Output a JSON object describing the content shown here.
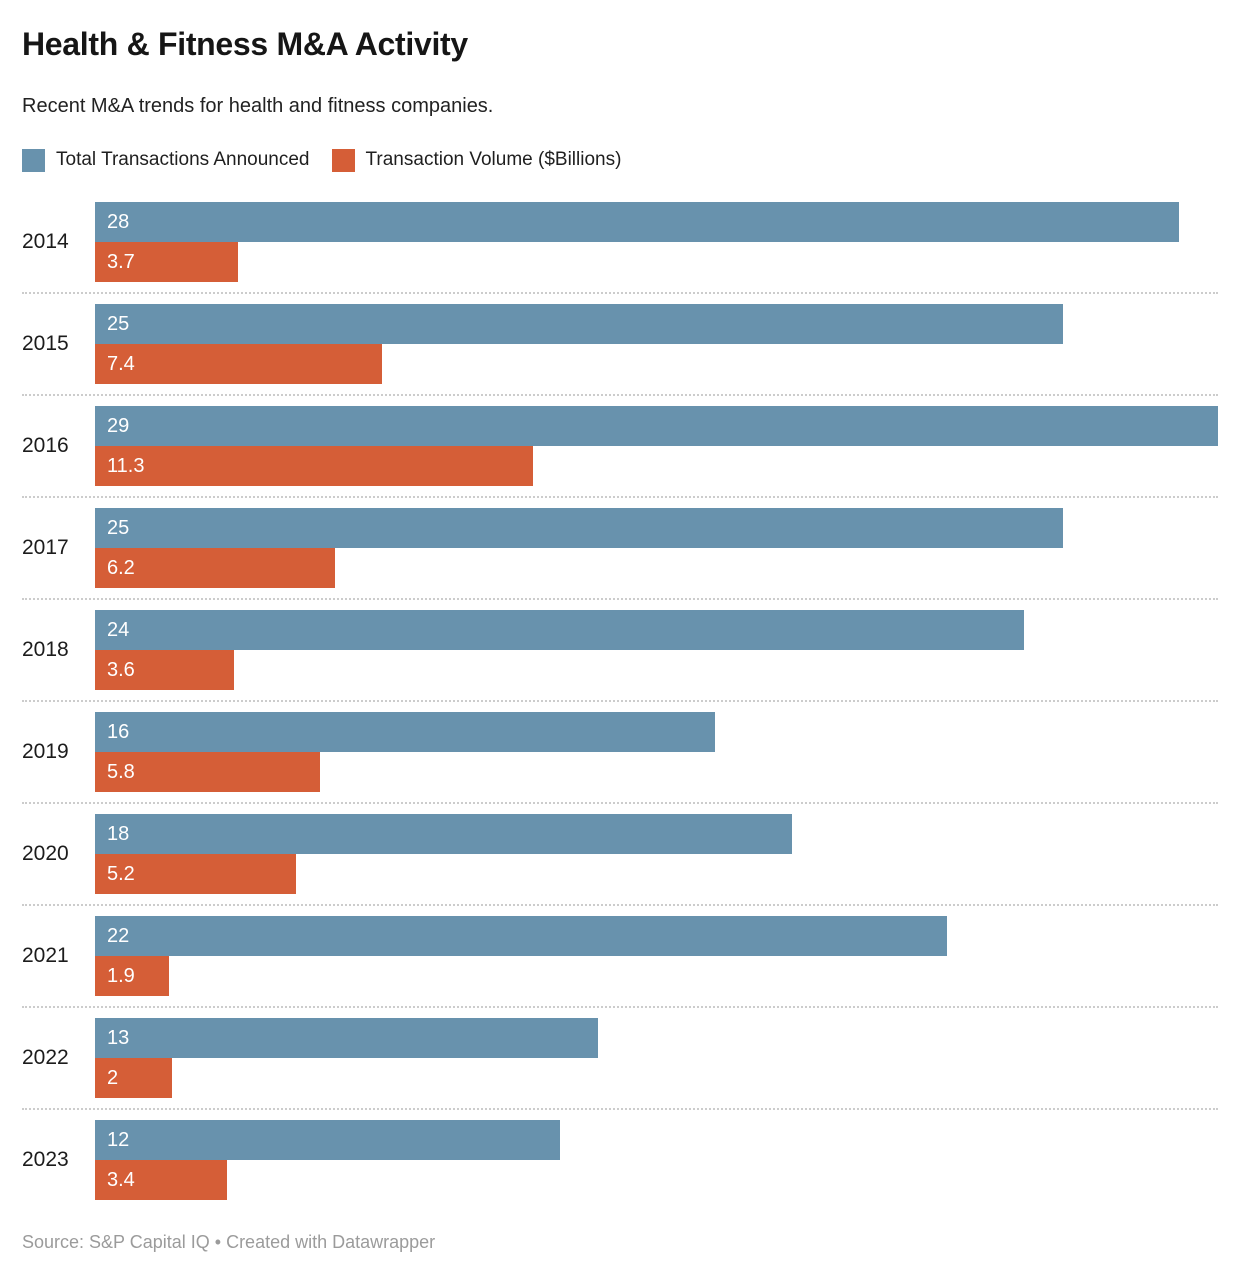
{
  "header": {
    "title": "Health & Fitness M&A Activity",
    "subtitle": "Recent M&A trends for health and fitness companies."
  },
  "legend": {
    "items": [
      {
        "label": "Total Transactions Announced",
        "color": "#6892ad"
      },
      {
        "label": "Transaction Volume ($Billions)",
        "color": "#d55e37"
      }
    ]
  },
  "footer": {
    "text": "Source: S&P Capital IQ • Created with Datawrapper"
  },
  "colors": {
    "blue": "#6892ad",
    "orange": "#d55e37",
    "separator": "#cccccc",
    "footer_text": "#9b9b9b"
  },
  "chart_data": {
    "type": "bar",
    "orientation": "horizontal",
    "title": "Health & Fitness M&A Activity",
    "subtitle": "Recent M&A trends for health and fitness companies.",
    "categories": [
      "2014",
      "2015",
      "2016",
      "2017",
      "2018",
      "2019",
      "2020",
      "2021",
      "2022",
      "2023"
    ],
    "series": [
      {
        "name": "Total Transactions Announced",
        "color": "#6892ad",
        "values": [
          28,
          25,
          29,
          25,
          24,
          16,
          18,
          22,
          13,
          12
        ]
      },
      {
        "name": "Transaction Volume ($Billions)",
        "color": "#d55e37",
        "values": [
          3.7,
          7.4,
          11.3,
          6.2,
          3.6,
          5.8,
          5.2,
          1.9,
          2,
          3.4
        ]
      }
    ],
    "xlim": [
      0,
      29
    ],
    "value_labels_inside_bars": true,
    "grid": false,
    "legend_position": "top",
    "row_separator": "dotted"
  }
}
